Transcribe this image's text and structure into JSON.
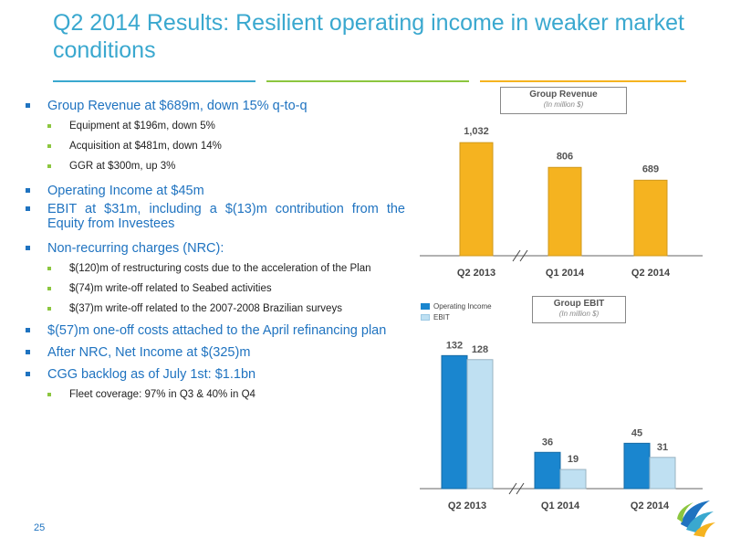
{
  "slide": {
    "title": "Q2 2014 Results: Resilient operating income in weaker market conditions",
    "page_number": "25",
    "accent_colors": [
      "#3aa8cf",
      "#8cc63f",
      "#f5b320"
    ]
  },
  "bullets": [
    {
      "text": "Group Revenue at $689m, down 15% q-to-q",
      "sub": [
        "Equipment at $196m, down 5%",
        "Acquisition at $481m, down 14%",
        "GGR at $300m, up 3%"
      ]
    },
    {
      "text": "Operating Income at $45m",
      "sub": []
    },
    {
      "text": "EBIT at $31m, including a $(13)m contribution from the Equity from Investees",
      "sub": []
    },
    {
      "text": "Non-recurring charges (NRC):",
      "sub": [
        "$(120)m of restructuring costs due to the acceleration of the Plan",
        "$(74)m write-off related to Seabed  activities",
        "$(37)m write-off related to the 2007-2008 Brazilian surveys"
      ]
    },
    {
      "text": "$(57)m one-off costs attached to the April refinancing plan",
      "sub": []
    },
    {
      "text": "After NRC, Net Income at $(325)m",
      "sub": []
    },
    {
      "text": "CGG backlog as of July 1st: $1.1bn",
      "sub": [
        "Fleet coverage: 97% in Q3 & 40% in Q4"
      ]
    }
  ],
  "chart_data": [
    {
      "type": "bar",
      "title": "Group Revenue",
      "subtitle": "(In million $)",
      "categories": [
        "Q2 2013",
        "Q1 2014",
        "Q2 2014"
      ],
      "values": [
        1032,
        806,
        689
      ],
      "value_labels": [
        "1,032",
        "806",
        "689"
      ],
      "color": "#f5b320",
      "ylim": [
        0,
        1250
      ],
      "axis_break": "between Q2 2013 and Q1 2014",
      "grid": false
    },
    {
      "type": "bar",
      "title": "Group EBIT",
      "subtitle": "(In million $)",
      "categories": [
        "Q2 2013",
        "Q1 2014",
        "Q2 2014"
      ],
      "series": [
        {
          "name": "Operating Income",
          "values": [
            132,
            36,
            45
          ],
          "color": "#1a86cf"
        },
        {
          "name": "EBIT",
          "values": [
            128,
            19,
            31
          ],
          "color": "#bfe0f2"
        }
      ],
      "legend": "top-left",
      "ylim": [
        0,
        145
      ],
      "axis_break": "between Q2 2013 and Q1 2014",
      "grid": false
    }
  ]
}
